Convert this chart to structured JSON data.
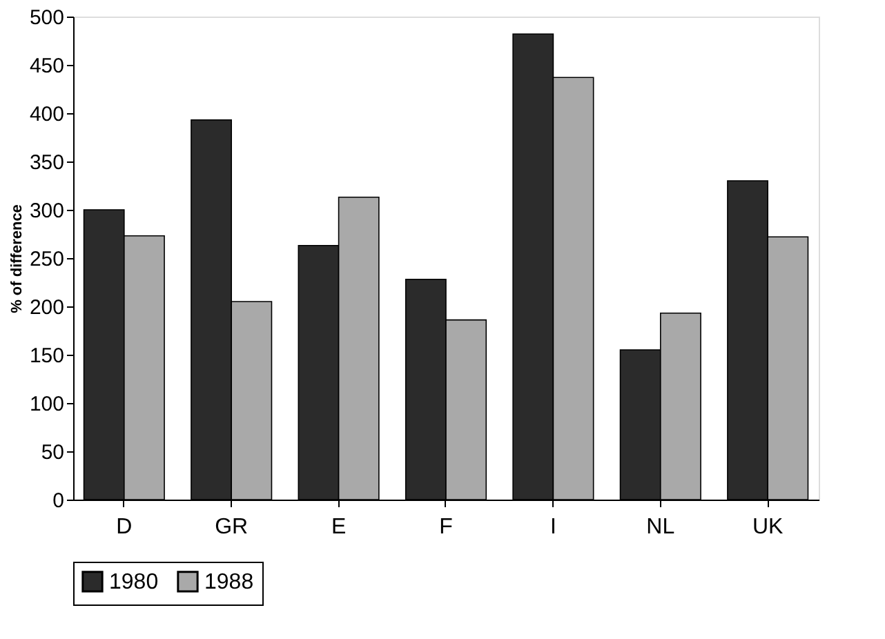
{
  "chart_data": {
    "type": "bar",
    "ylabel": "% of difference",
    "categories": [
      "D",
      "GR",
      "E",
      "F",
      "I",
      "NL",
      "UK"
    ],
    "series": [
      {
        "name": "1980",
        "color": "#2b2b2b",
        "values": [
          300,
          393,
          263,
          228,
          482,
          155,
          330
        ]
      },
      {
        "name": "1988",
        "color": "#a9a9a9",
        "values": [
          273,
          205,
          313,
          186,
          437,
          193,
          272
        ]
      }
    ],
    "ylim": [
      0,
      500
    ],
    "yticks": [
      0,
      50,
      100,
      150,
      200,
      250,
      300,
      350,
      400,
      450,
      500
    ],
    "grid": false,
    "legend": "bottom"
  }
}
